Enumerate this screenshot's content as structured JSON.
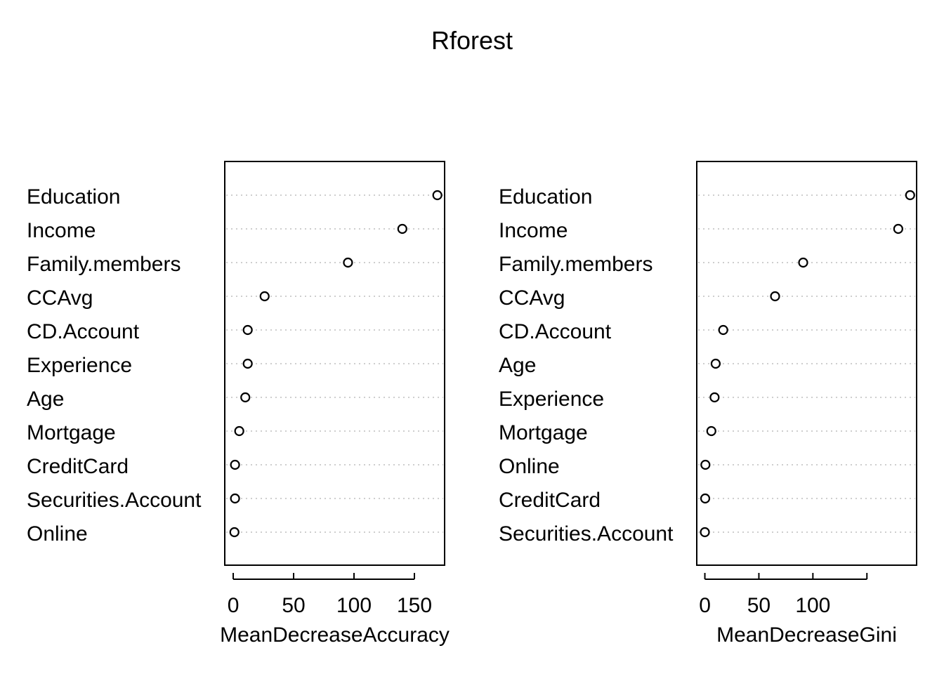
{
  "chart_data": {
    "type": "scatter",
    "title": "Rforest",
    "panels": [
      {
        "xlabel": "MeanDecreaseAccuracy",
        "xlim": [
          -7,
          175
        ],
        "ticks": [
          0,
          50,
          100,
          150
        ],
        "tick_labels": [
          "0",
          "50",
          "100",
          "150"
        ],
        "categories": [
          "Education",
          "Income",
          "Family.members",
          "CCAvg",
          "CD.Account",
          "Experience",
          "Age",
          "Mortgage",
          "CreditCard",
          "Securities.Account",
          "Online"
        ],
        "values": [
          169,
          140,
          95,
          26,
          12,
          12,
          10,
          5,
          1.5,
          1.5,
          1
        ]
      },
      {
        "xlabel": "MeanDecreaseGini",
        "xlim": [
          -7.5,
          196
        ],
        "ticks": [
          0,
          50,
          100,
          150
        ],
        "tick_labels": [
          "0",
          "50",
          "100",
          ""
        ],
        "categories": [
          "Education",
          "Income",
          "Family.members",
          "CCAvg",
          "CD.Account",
          "Age",
          "Experience",
          "Mortgage",
          "Online",
          "CreditCard",
          "Securities.Account"
        ],
        "values": [
          190,
          179,
          91,
          65,
          17,
          10,
          9,
          6,
          0.5,
          0.3,
          0
        ]
      }
    ],
    "grid": "dotted-horizontal"
  }
}
